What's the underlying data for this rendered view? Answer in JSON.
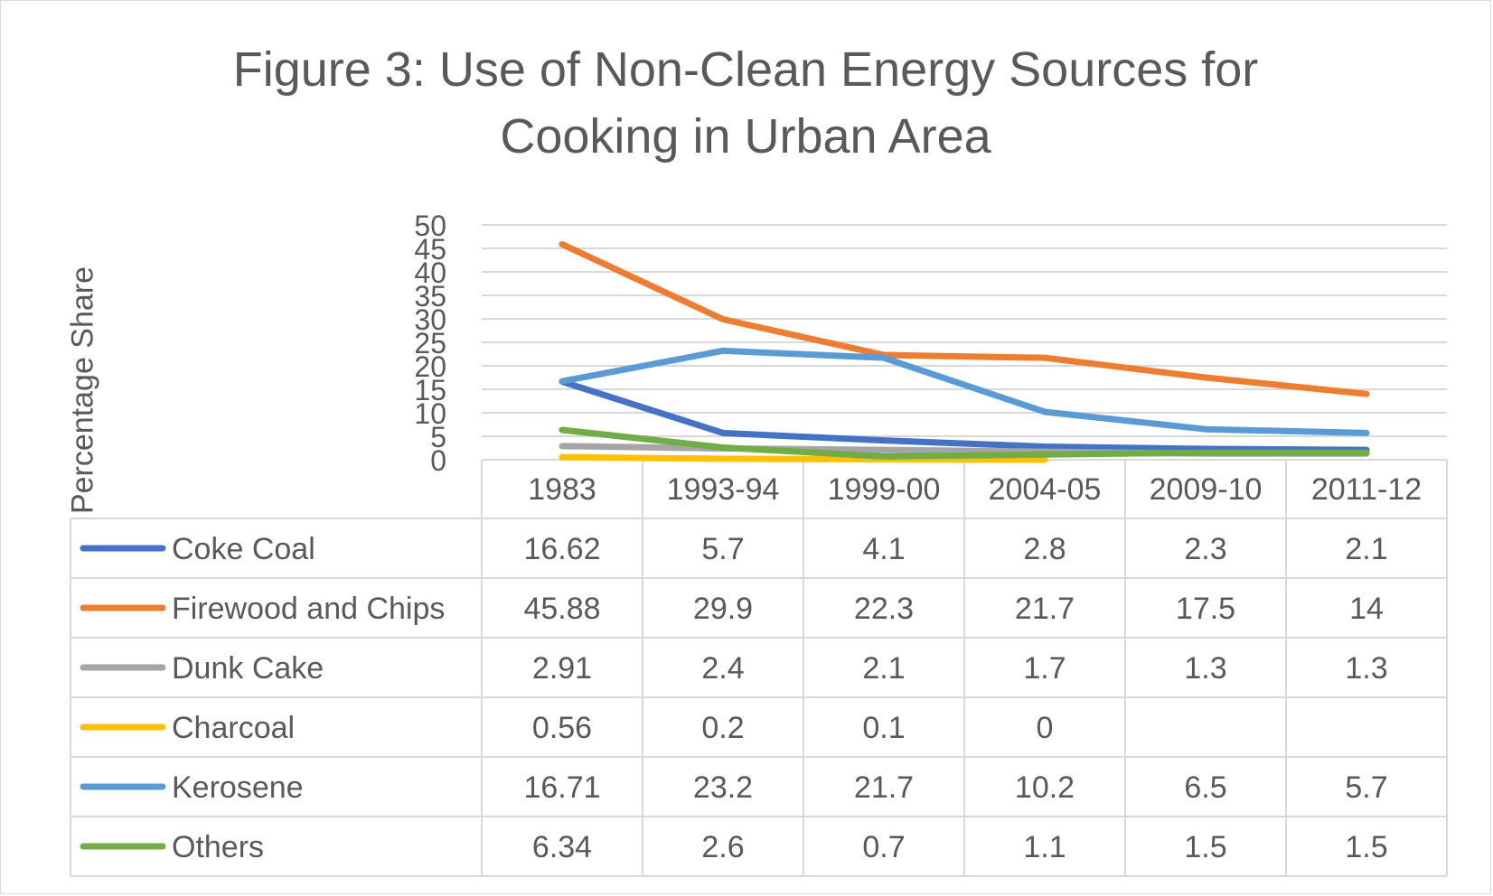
{
  "chart_data": {
    "type": "line",
    "title": "Figure 3: Use of Non-Clean Energy Sources for Cooking in Urban Area",
    "ylabel": "Percentage Share",
    "xlabel": "",
    "ylim": [
      0,
      50
    ],
    "yticks": [
      0,
      5,
      10,
      15,
      20,
      25,
      30,
      35,
      40,
      45,
      50
    ],
    "categories": [
      "1983",
      "1993-94",
      "1999-00",
      "2004-05",
      "2009-10",
      "2011-12"
    ],
    "grid": true,
    "legend": "data table below plot",
    "series": [
      {
        "name": "Coke Coal",
        "color": "#4472C4",
        "values": [
          16.62,
          5.7,
          4.1,
          2.8,
          2.3,
          2.1
        ],
        "labels": [
          "16.62",
          "5.7",
          "4.1",
          "2.8",
          "2.3",
          "2.1"
        ]
      },
      {
        "name": "Firewood and Chips",
        "color": "#ED7D31",
        "values": [
          45.88,
          29.9,
          22.3,
          21.7,
          17.5,
          14
        ],
        "labels": [
          "45.88",
          "29.9",
          "22.3",
          "21.7",
          "17.5",
          "14"
        ]
      },
      {
        "name": "Dunk Cake",
        "color": "#A5A5A5",
        "values": [
          2.91,
          2.4,
          2.1,
          1.7,
          1.3,
          1.3
        ],
        "labels": [
          "2.91",
          "2.4",
          "2.1",
          "1.7",
          "1.3",
          "1.3"
        ]
      },
      {
        "name": "Charcoal",
        "color": "#FFC000",
        "values": [
          0.56,
          0.2,
          0.1,
          0,
          null,
          null
        ],
        "labels": [
          "0.56",
          "0.2",
          "0.1",
          "0",
          "",
          ""
        ]
      },
      {
        "name": "Kerosene",
        "color": "#5B9BD5",
        "values": [
          16.71,
          23.2,
          21.7,
          10.2,
          6.5,
          5.7
        ],
        "labels": [
          "16.71",
          "23.2",
          "21.7",
          "10.2",
          "6.5",
          "5.7"
        ]
      },
      {
        "name": "Others",
        "color": "#70AD47",
        "values": [
          6.34,
          2.6,
          0.7,
          1.1,
          1.5,
          1.5
        ],
        "labels": [
          "6.34",
          "2.6",
          "0.7",
          "1.1",
          "1.5",
          "1.5"
        ]
      }
    ]
  }
}
